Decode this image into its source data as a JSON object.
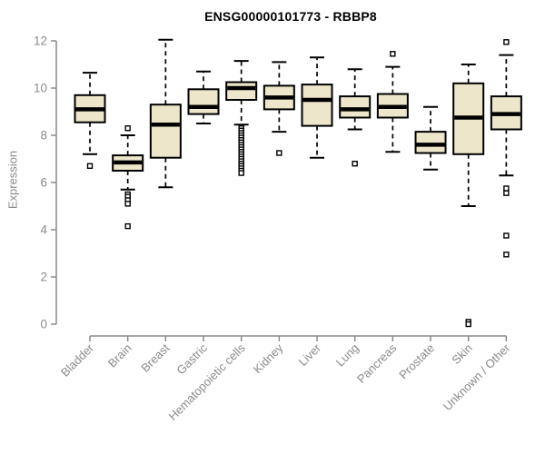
{
  "chart_data": {
    "type": "boxplot",
    "title": "ENSG00000101773 - RBBP8",
    "xlabel": "",
    "ylabel": "Expression",
    "ylim": [
      0,
      12
    ],
    "yticks": [
      0,
      2,
      4,
      6,
      8,
      10,
      12
    ],
    "grid": false,
    "legend": false,
    "categories": [
      "Bladder",
      "Brain",
      "Breast",
      "Gastric",
      "Hematopoietic cells",
      "Kidney",
      "Liver",
      "Lung",
      "Pancreas",
      "Prostate",
      "Skin",
      "Unknown / Other"
    ],
    "boxes": [
      {
        "category": "Bladder",
        "whisker_low": 7.2,
        "q1": 8.55,
        "median": 9.1,
        "q3": 9.7,
        "whisker_high": 10.65,
        "outliers": [
          6.7
        ]
      },
      {
        "category": "Brain",
        "whisker_low": 5.7,
        "q1": 6.5,
        "median": 6.85,
        "q3": 7.15,
        "whisker_high": 8.0,
        "outliers": [
          8.3,
          5.5,
          5.4,
          5.25,
          5.1,
          4.15
        ]
      },
      {
        "category": "Breast",
        "whisker_low": 5.8,
        "q1": 7.05,
        "median": 8.45,
        "q3": 9.3,
        "whisker_high": 12.05,
        "outliers": []
      },
      {
        "category": "Gastric",
        "whisker_low": 8.5,
        "q1": 8.9,
        "median": 9.2,
        "q3": 9.95,
        "whisker_high": 10.7,
        "outliers": []
      },
      {
        "category": "Hematopoietic cells",
        "whisker_low": 8.45,
        "q1": 9.5,
        "median": 10.0,
        "q3": 10.25,
        "whisker_high": 11.15,
        "outliers": [
          8.3,
          8.2,
          8.1,
          8.0,
          7.9,
          7.8,
          7.7,
          7.6,
          7.5,
          7.4,
          7.3,
          7.2,
          7.1,
          7.0,
          6.9,
          6.8,
          6.7,
          6.6,
          6.5,
          6.4
        ]
      },
      {
        "category": "Kidney",
        "whisker_low": 8.15,
        "q1": 9.1,
        "median": 9.6,
        "q3": 10.1,
        "whisker_high": 11.1,
        "outliers": [
          7.25
        ]
      },
      {
        "category": "Liver",
        "whisker_low": 7.05,
        "q1": 8.4,
        "median": 9.5,
        "q3": 10.15,
        "whisker_high": 11.3,
        "outliers": []
      },
      {
        "category": "Lung",
        "whisker_low": 8.25,
        "q1": 8.75,
        "median": 9.1,
        "q3": 9.65,
        "whisker_high": 10.8,
        "outliers": [
          6.8
        ]
      },
      {
        "category": "Pancreas",
        "whisker_low": 7.3,
        "q1": 8.75,
        "median": 9.2,
        "q3": 9.75,
        "whisker_high": 10.9,
        "outliers": [
          11.45
        ]
      },
      {
        "category": "Prostate",
        "whisker_low": 6.55,
        "q1": 7.25,
        "median": 7.6,
        "q3": 8.15,
        "whisker_high": 9.2,
        "outliers": []
      },
      {
        "category": "Skin",
        "whisker_low": 5.0,
        "q1": 7.2,
        "median": 8.75,
        "q3": 10.2,
        "whisker_high": 11.0,
        "outliers": [
          0.1,
          0.0
        ]
      },
      {
        "category": "Unknown / Other",
        "whisker_low": 6.3,
        "q1": 8.25,
        "median": 8.9,
        "q3": 9.65,
        "whisker_high": 11.4,
        "outliers": [
          11.95,
          5.75,
          5.55,
          3.75,
          2.95
        ]
      }
    ],
    "colors": {
      "box_fill": "#EDE6CB",
      "box_border": "#000000",
      "median": "#000000",
      "axis": "#8a8a8a",
      "tick_label": "#8a8a8a",
      "title": "#000000",
      "background": "#ffffff"
    }
  }
}
